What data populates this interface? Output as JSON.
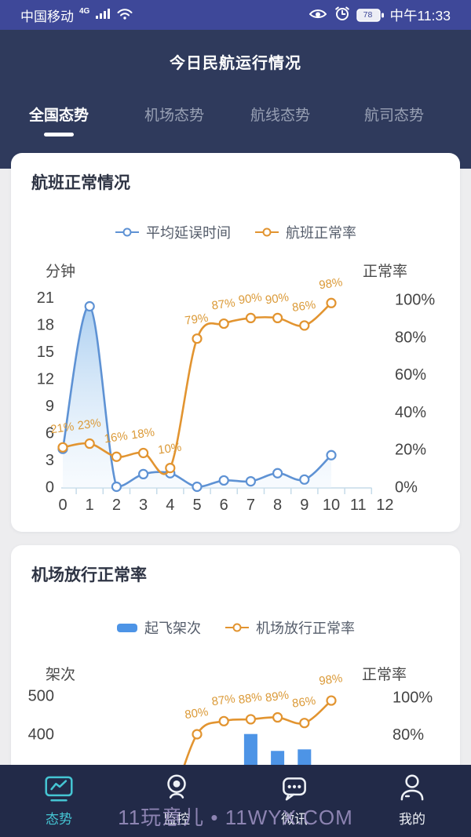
{
  "status_bar": {
    "carrier": "中国移动",
    "network": "4G",
    "battery": "78",
    "time": "中午11:33"
  },
  "header": {
    "title": "今日民航运行情况",
    "tabs": [
      {
        "label": "全国态势",
        "active": true
      },
      {
        "label": "机场态势",
        "active": false
      },
      {
        "label": "航线态势",
        "active": false
      },
      {
        "label": "航司态势",
        "active": false
      }
    ]
  },
  "colors": {
    "status_bar_bg": "#3e4899",
    "header_bg": "#2f3a5c",
    "nav_bg": "#222a48",
    "accent_teal": "#45c5d3",
    "line_blue": "#5e92d4",
    "line_orange": "#e29430",
    "bar_blue": "#4d94e6",
    "label_orange": "#db9a38"
  },
  "chart_data": [
    {
      "type": "line",
      "title": "航班正常情况",
      "legend": [
        {
          "label": "平均延误时间",
          "marker": "line",
          "color": "#5e92d4"
        },
        {
          "label": "航班正常率",
          "marker": "line",
          "color": "#e29430"
        }
      ],
      "x_ticks": [
        "0",
        "1",
        "2",
        "3",
        "4",
        "5",
        "6",
        "7",
        "8",
        "9",
        "10",
        "11",
        "12"
      ],
      "left_axis": {
        "title": "分钟",
        "ticks": [
          "21",
          "18",
          "15",
          "12",
          "9",
          "6",
          "3",
          "0"
        ],
        "tick_values": [
          21,
          18,
          15,
          12,
          9,
          6,
          3,
          0
        ],
        "range": [
          0,
          21
        ]
      },
      "right_axis": {
        "title": "正常率",
        "ticks": [
          "100%",
          "80%",
          "60%",
          "40%",
          "20%",
          "0%"
        ],
        "tick_values": [
          100,
          80,
          60,
          40,
          20,
          0
        ],
        "range": [
          0,
          100
        ]
      },
      "series": [
        {
          "name": "平均延误时间",
          "type": "line",
          "y_axis": "left",
          "color": "#5e92d4",
          "area": true,
          "x": [
            0,
            1,
            2,
            3,
            4,
            5,
            6,
            7,
            8,
            9,
            10
          ],
          "values": [
            4.2,
            20,
            0,
            1.4,
            1.5,
            0,
            0.7,
            0.6,
            1.5,
            0.8,
            3.5
          ]
        },
        {
          "name": "航班正常率",
          "type": "line",
          "y_axis": "right",
          "color": "#e29430",
          "x": [
            0,
            1,
            2,
            3,
            4,
            5,
            6,
            7,
            8,
            9,
            10
          ],
          "values": [
            21,
            23,
            16,
            18,
            10,
            79,
            87,
            90,
            90,
            86,
            98
          ],
          "point_labels": [
            "21%",
            "23%",
            "16%",
            "18%",
            "10%",
            "79%",
            "87%",
            "90%",
            "90%",
            "86%",
            "98%"
          ]
        }
      ]
    },
    {
      "type": "bar+line",
      "title": "机场放行正常率",
      "legend": [
        {
          "label": "起飞架次",
          "marker": "bar",
          "color": "#4d94e6"
        },
        {
          "label": "机场放行正常率",
          "marker": "line",
          "color": "#e29430"
        }
      ],
      "left_axis": {
        "title": "架次",
        "ticks": [
          "500",
          "400"
        ],
        "tick_values": [
          500,
          400
        ]
      },
      "right_axis": {
        "title": "正常率",
        "ticks": [
          "100%",
          "80%"
        ],
        "tick_values": [
          100,
          80
        ]
      },
      "series": [
        {
          "name": "起飞架次",
          "type": "bar",
          "y_axis": "left",
          "color": "#4d94e6",
          "x": [
            7,
            8,
            9
          ],
          "values": [
            400,
            356,
            360
          ]
        },
        {
          "name": "机场放行正常率",
          "type": "line",
          "y_axis": "right",
          "color": "#e29430",
          "x": [
            4,
            5,
            6,
            7,
            8,
            9,
            10
          ],
          "values": [
            40,
            80,
            87,
            88,
            89,
            86,
            98
          ],
          "point_labels": [
            null,
            "80%",
            "87%",
            "88%",
            "89%",
            "86%",
            "98%"
          ]
        }
      ]
    }
  ],
  "bottom_nav": {
    "items": [
      {
        "label": "态势",
        "icon": "trend-monitor-icon",
        "active": true
      },
      {
        "label": "监控",
        "icon": "webcam-icon",
        "active": false
      },
      {
        "label": "微讯",
        "icon": "chat-bubble-icon",
        "active": false
      },
      {
        "label": "我的",
        "icon": "person-icon",
        "active": false
      }
    ]
  },
  "watermark": "11玩意儿 • 11WYX.COM"
}
